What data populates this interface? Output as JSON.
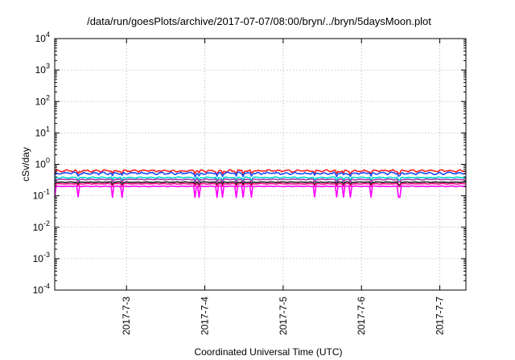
{
  "chart_data": {
    "type": "line",
    "title": "/data/run/goesPlots/archive/2017-07-07/08:00/bryn/../bryn/5daysMoon.plot",
    "xlabel": "Coordinated Universal Time (UTC)",
    "ylabel": "cSv/day",
    "yscale": "log",
    "ylim": [
      0.0001,
      10000
    ],
    "xlim": [
      "2017-07-02T02:00",
      "2017-07-07T08:00"
    ],
    "x_ticks": [
      {
        "date": "2017-07-03",
        "label": "2017-7-3"
      },
      {
        "date": "2017-07-04",
        "label": "2017-7-4"
      },
      {
        "date": "2017-07-05",
        "label": "2017-7-5"
      },
      {
        "date": "2017-07-06",
        "label": "2017-7-6"
      },
      {
        "date": "2017-07-07",
        "label": "2017-7-7"
      }
    ],
    "y_ticks": [
      {
        "value": 0.0001,
        "base": "10",
        "exp": "-4"
      },
      {
        "value": 0.001,
        "base": "10",
        "exp": "-3"
      },
      {
        "value": 0.01,
        "base": "10",
        "exp": "-2"
      },
      {
        "value": 0.1,
        "base": "10",
        "exp": "-1"
      },
      {
        "value": 1,
        "base": "10",
        "exp": "0"
      },
      {
        "value": 10,
        "base": "10",
        "exp": "1"
      },
      {
        "value": 100,
        "base": "10",
        "exp": "2"
      },
      {
        "value": 1000,
        "base": "10",
        "exp": "3"
      },
      {
        "value": 10000,
        "base": "10",
        "exp": "4"
      }
    ],
    "grid": true,
    "legend": "none",
    "series": [
      {
        "color": "#ff2020",
        "level": 0.62,
        "spread": 0.1,
        "dips": false
      },
      {
        "color": "#1c4cff",
        "level": 0.52,
        "spread": 0.1,
        "dips": false
      },
      {
        "color": "#00d8d0",
        "level": 0.38,
        "spread": 0.05,
        "dips": false
      },
      {
        "color": "#a83cb0",
        "level": 0.33,
        "spread": 0.04,
        "dips": false
      },
      {
        "color": "#1a1a1a",
        "level": 0.27,
        "spread": 0.03,
        "dips": false
      },
      {
        "color": "#ff1090",
        "level": 0.24,
        "spread": 0.03,
        "dips": false
      },
      {
        "color": "#ff00ff",
        "level": 0.2,
        "spread": 0.03,
        "dips": true
      }
    ]
  }
}
